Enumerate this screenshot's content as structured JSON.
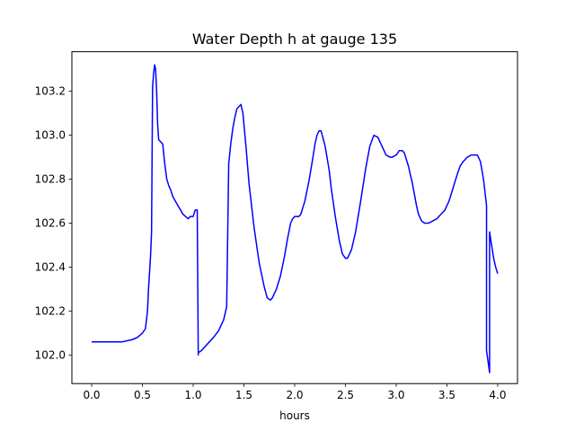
{
  "chart_data": {
    "type": "line",
    "title": "Water Depth h at gauge 135",
    "xlabel": "hours",
    "ylabel": "",
    "xlim": [
      -0.195,
      4.195
    ],
    "ylim": [
      101.87,
      103.38
    ],
    "xticks": [
      0.0,
      0.5,
      1.0,
      1.5,
      2.0,
      2.5,
      3.0,
      3.5,
      4.0
    ],
    "xtick_labels": [
      "0.0",
      "0.5",
      "1.0",
      "1.5",
      "2.0",
      "2.5",
      "3.0",
      "3.5",
      "4.0"
    ],
    "yticks": [
      102.0,
      102.2,
      102.4,
      102.6,
      102.8,
      103.0,
      103.2
    ],
    "ytick_labels": [
      "102.0",
      "102.2",
      "102.4",
      "102.6",
      "102.8",
      "103.0",
      "103.2"
    ],
    "grid": false,
    "series": [
      {
        "color": "#0000ff",
        "x": [
          0.0,
          0.1,
          0.2,
          0.3,
          0.4,
          0.45,
          0.5,
          0.53,
          0.55,
          0.56,
          0.58,
          0.59,
          0.6,
          0.6,
          0.61,
          0.62,
          0.63,
          0.64,
          0.65,
          0.66,
          0.68,
          0.7,
          0.72,
          0.74,
          0.76,
          0.78,
          0.8,
          0.85,
          0.9,
          0.95,
          0.97,
          1.0,
          1.02,
          1.04,
          1.05,
          1.05,
          1.08,
          1.12,
          1.16,
          1.2,
          1.25,
          1.3,
          1.33,
          1.35,
          1.35,
          1.37,
          1.39,
          1.41,
          1.43,
          1.45,
          1.47,
          1.49,
          1.52,
          1.55,
          1.6,
          1.65,
          1.7,
          1.73,
          1.76,
          1.78,
          1.82,
          1.86,
          1.9,
          1.93,
          1.96,
          1.98,
          2.0,
          2.02,
          2.04,
          2.06,
          2.1,
          2.14,
          2.18,
          2.2,
          2.22,
          2.24,
          2.26,
          2.3,
          2.34,
          2.36,
          2.4,
          2.44,
          2.47,
          2.5,
          2.52,
          2.56,
          2.6,
          2.65,
          2.7,
          2.74,
          2.78,
          2.82,
          2.86,
          2.9,
          2.94,
          2.96,
          3.0,
          3.03,
          3.06,
          3.08,
          3.12,
          3.16,
          3.2,
          3.22,
          3.25,
          3.28,
          3.32,
          3.36,
          3.4,
          3.44,
          3.48,
          3.52,
          3.56,
          3.6,
          3.63,
          3.66,
          3.7,
          3.74,
          3.78,
          3.8,
          3.83,
          3.86,
          3.88,
          3.89,
          3.89,
          3.92,
          3.92,
          3.94,
          3.96,
          3.98,
          4.0
        ],
        "y": [
          102.06,
          102.06,
          102.06,
          102.06,
          102.07,
          102.08,
          102.1,
          102.12,
          102.2,
          102.3,
          102.45,
          102.56,
          103.22,
          103.22,
          103.28,
          103.32,
          103.3,
          103.2,
          103.05,
          102.98,
          102.97,
          102.96,
          102.87,
          102.8,
          102.77,
          102.75,
          102.72,
          102.68,
          102.64,
          102.62,
          102.63,
          102.63,
          102.66,
          102.66,
          102.0,
          102.01,
          102.02,
          102.04,
          102.06,
          102.08,
          102.11,
          102.16,
          102.22,
          102.87,
          102.87,
          102.96,
          103.03,
          103.08,
          103.12,
          103.13,
          103.14,
          103.1,
          102.95,
          102.78,
          102.58,
          102.42,
          102.31,
          102.26,
          102.25,
          102.26,
          102.3,
          102.36,
          102.45,
          102.53,
          102.6,
          102.62,
          102.63,
          102.63,
          102.63,
          102.64,
          102.7,
          102.79,
          102.9,
          102.96,
          103.0,
          103.02,
          103.02,
          102.95,
          102.84,
          102.76,
          102.63,
          102.52,
          102.46,
          102.44,
          102.44,
          102.48,
          102.56,
          102.7,
          102.85,
          102.95,
          103.0,
          102.99,
          102.95,
          102.91,
          102.9,
          102.9,
          102.91,
          102.93,
          102.93,
          102.92,
          102.86,
          102.78,
          102.68,
          102.64,
          102.61,
          102.6,
          102.6,
          102.61,
          102.62,
          102.64,
          102.66,
          102.7,
          102.76,
          102.82,
          102.86,
          102.88,
          102.9,
          102.91,
          102.91,
          102.91,
          102.88,
          102.8,
          102.72,
          102.68,
          102.02,
          101.92,
          102.56,
          102.5,
          102.44,
          102.4,
          102.37
        ]
      }
    ]
  }
}
